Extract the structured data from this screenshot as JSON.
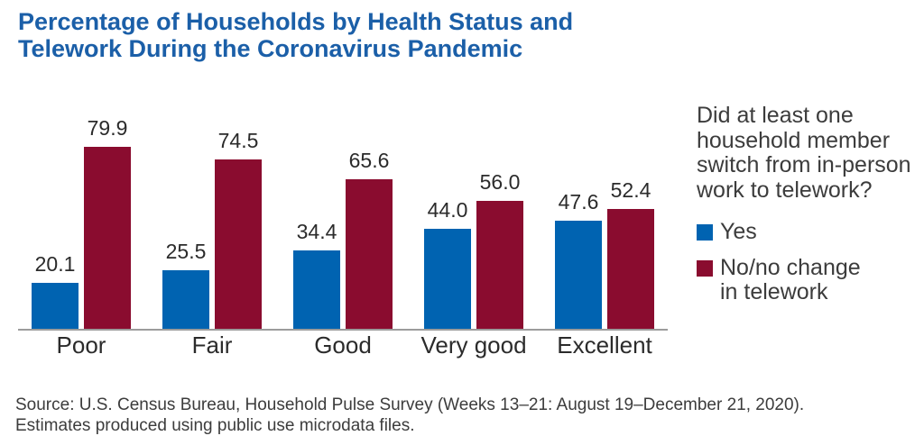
{
  "title": {
    "lines": [
      "Percentage of Households by Health Status and",
      "Telework During the Coronavirus Pandemic"
    ],
    "color": "#1B5FA8"
  },
  "legend": {
    "question_lines": [
      "Did at least one",
      "household member",
      "switch from in-person",
      "work to telework?"
    ],
    "items": [
      {
        "label_lines": [
          "Yes"
        ],
        "color": "#0063B1"
      },
      {
        "label_lines": [
          "No/no change",
          "in telework"
        ],
        "color": "#8A0C2F"
      }
    ]
  },
  "source": {
    "lines": [
      "Source: U.S. Census Bureau, Household Pulse Survey (Weeks 13–21: August 19–December 21, 2020).",
      "Estimates produced using public use microdata files."
    ]
  },
  "chart_data": {
    "type": "bar",
    "title": "Percentage of Households by Health Status and Telework During the Coronavirus Pandemic",
    "categories": [
      "Poor",
      "Fair",
      "Good",
      "Very good",
      "Excellent"
    ],
    "series": [
      {
        "name": "Yes",
        "color": "#0063B1",
        "values": [
          20.1,
          25.5,
          34.4,
          44.0,
          47.6
        ],
        "labels": [
          "20.1",
          "25.5",
          "34.4",
          "44.0",
          "47.6"
        ]
      },
      {
        "name": "No/no change in telework",
        "color": "#8A0C2F",
        "values": [
          79.9,
          74.5,
          65.6,
          56.0,
          52.4
        ],
        "labels": [
          "79.9",
          "74.5",
          "65.6",
          "56.0",
          "52.4"
        ]
      }
    ],
    "ylim": [
      0,
      100
    ],
    "grid": false,
    "legend_position": "right",
    "axis_color": "#9c9c9c",
    "value_label_color": "#2b2b2b"
  }
}
